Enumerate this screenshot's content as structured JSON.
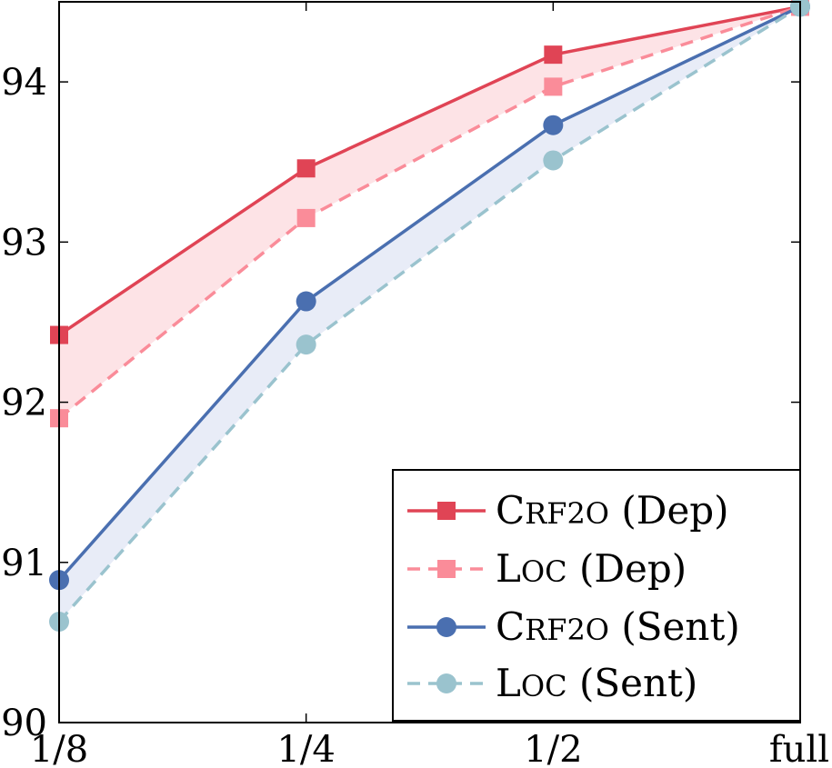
{
  "chart_data": {
    "type": "line",
    "title": "",
    "xlabel": "",
    "ylabel": "",
    "categories": [
      "1/8",
      "1/4",
      "1/2",
      "full"
    ],
    "ylim": [
      90,
      94.5
    ],
    "yticks": [
      90,
      91,
      92,
      93,
      94
    ],
    "series": [
      {
        "name": "CRF2O (Dep)",
        "legend_main": "C",
        "legend_smallcaps": "RF2O",
        "legend_suffix": " (Dep)",
        "color": "#e04455",
        "marker": "square",
        "dash": false,
        "values": [
          92.42,
          93.46,
          94.17,
          94.47
        ]
      },
      {
        "name": "LOC (Dep)",
        "legend_main": "L",
        "legend_smallcaps": "OC",
        "legend_suffix": " (Dep)",
        "color": "#fa8c99",
        "marker": "square",
        "dash": true,
        "values": [
          91.9,
          93.15,
          93.97,
          94.47
        ]
      },
      {
        "name": "CRF2O (Sent)",
        "legend_main": "C",
        "legend_smallcaps": "RF2O",
        "legend_suffix": " (Sent)",
        "color": "#4a6fb0",
        "marker": "circle",
        "dash": false,
        "values": [
          90.89,
          92.63,
          93.73,
          94.47
        ]
      },
      {
        "name": "LOC (Sent)",
        "legend_main": "L",
        "legend_smallcaps": "OC",
        "legend_suffix": " (Sent)",
        "color": "#9ac3ce",
        "marker": "circle",
        "dash": true,
        "values": [
          90.63,
          92.36,
          93.51,
          94.47
        ]
      }
    ],
    "fills": [
      {
        "between": [
          0,
          1
        ],
        "color": "#fde3e6"
      },
      {
        "between": [
          2,
          3
        ],
        "color": "#e8ecf7"
      }
    ],
    "legend_position": "bottom-right",
    "grid": false
  }
}
